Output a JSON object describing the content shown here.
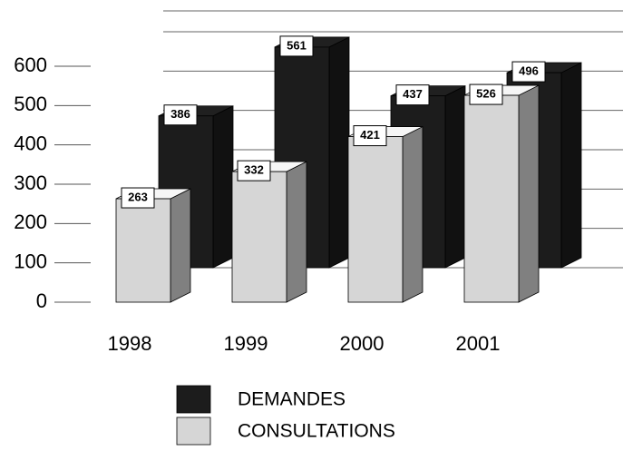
{
  "chart_data": {
    "type": "bar3d",
    "categories": [
      "1998",
      "1999",
      "2000",
      "2001"
    ],
    "series": [
      {
        "name": "DEMANDES",
        "color": "#1c1c1c",
        "values": [
          386,
          561,
          437,
          496
        ]
      },
      {
        "name": "CONSULTATIONS",
        "color": "#d6d6d6",
        "values": [
          263,
          332,
          421,
          526
        ]
      }
    ],
    "ylim": [
      0,
      700
    ],
    "yticks": [
      0,
      100,
      200,
      300,
      400,
      500,
      600
    ],
    "grid": true
  }
}
